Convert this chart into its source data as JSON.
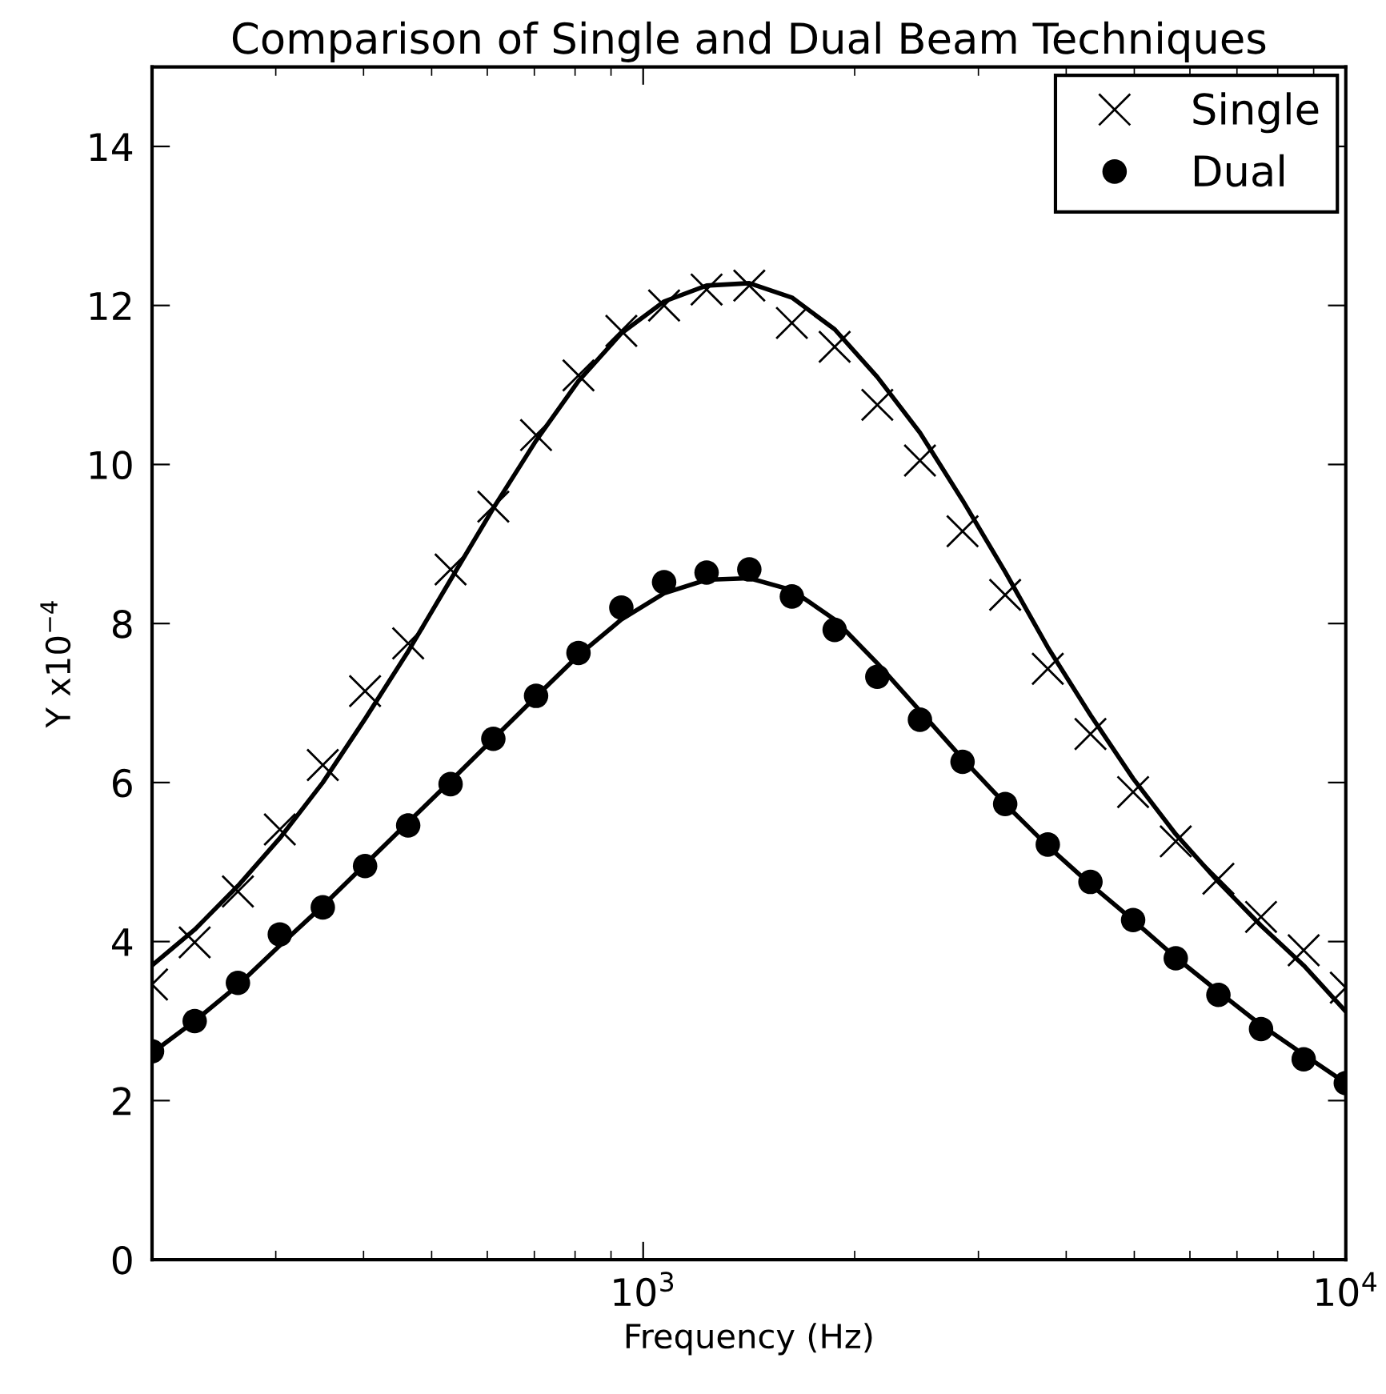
{
  "chart_data": {
    "type": "scatter",
    "title": "Comparison of Single and Dual Beam Techniques",
    "xlabel": "Frequency (Hz)",
    "ylabel": "Y x10$^{−4}$",
    "log": "x",
    "xlim": [
      200,
      10000
    ],
    "xticks": [
      {
        "value": 1000,
        "label": "10$^{3}$"
      },
      {
        "value": 10000,
        "label": "10$^{4}$"
      }
    ],
    "ylim": [
      0,
      15
    ],
    "yticks": [
      0,
      2,
      4,
      6,
      8,
      10,
      12,
      14
    ],
    "grid": false,
    "legend": "top right",
    "x": [
      200,
      230,
      265,
      304,
      350,
      402,
      463,
      532,
      612,
      704,
      809,
      931,
      1071,
      1231,
      1416,
      1628,
      1873,
      2154,
      2477,
      2848,
      3275,
      3766,
      4331,
      4981,
      5728,
      6587,
      7575,
      8711,
      10000
    ],
    "series": [
      {
        "name": "Single",
        "marker": "cross",
        "color": "#000000",
        "values": [
          3.46,
          3.99,
          4.63,
          5.41,
          6.22,
          7.15,
          7.75,
          8.68,
          9.47,
          10.37,
          11.12,
          11.68,
          12.0,
          12.2,
          12.25,
          11.78,
          11.48,
          10.75,
          10.05,
          9.16,
          8.36,
          7.43,
          6.61,
          5.88,
          5.26,
          4.79,
          4.31,
          3.89,
          3.42
        ]
      },
      {
        "name": "Dual",
        "marker": "circle",
        "color": "#000000",
        "values": [
          2.62,
          3.0,
          3.48,
          4.09,
          4.43,
          4.95,
          5.46,
          5.98,
          6.55,
          7.09,
          7.63,
          8.2,
          8.52,
          8.64,
          8.68,
          8.34,
          7.92,
          7.33,
          6.79,
          6.26,
          5.73,
          5.22,
          4.75,
          4.27,
          3.79,
          3.33,
          2.9,
          2.52,
          2.22
        ]
      },
      {
        "type": "line",
        "marker": "none",
        "line_style": "solid",
        "color": "#000000",
        "values": [
          3.7,
          4.15,
          4.7,
          5.3,
          6.0,
          6.8,
          7.65,
          8.55,
          9.45,
          10.3,
          11.05,
          11.65,
          12.05,
          12.25,
          12.28,
          12.1,
          11.7,
          11.1,
          10.4,
          9.55,
          8.65,
          7.7,
          6.85,
          6.05,
          5.35,
          4.75,
          4.2,
          3.7,
          3.12
        ]
      },
      {
        "type": "line",
        "marker": "none",
        "line_style": "solid",
        "color": "#000000",
        "values": [
          2.6,
          3.0,
          3.45,
          3.95,
          4.45,
          4.97,
          5.5,
          6.02,
          6.55,
          7.08,
          7.6,
          8.05,
          8.38,
          8.55,
          8.57,
          8.42,
          8.05,
          7.5,
          6.9,
          6.3,
          5.73,
          5.2,
          4.72,
          4.27,
          3.8,
          3.37,
          2.95,
          2.58,
          2.22
        ]
      }
    ]
  }
}
